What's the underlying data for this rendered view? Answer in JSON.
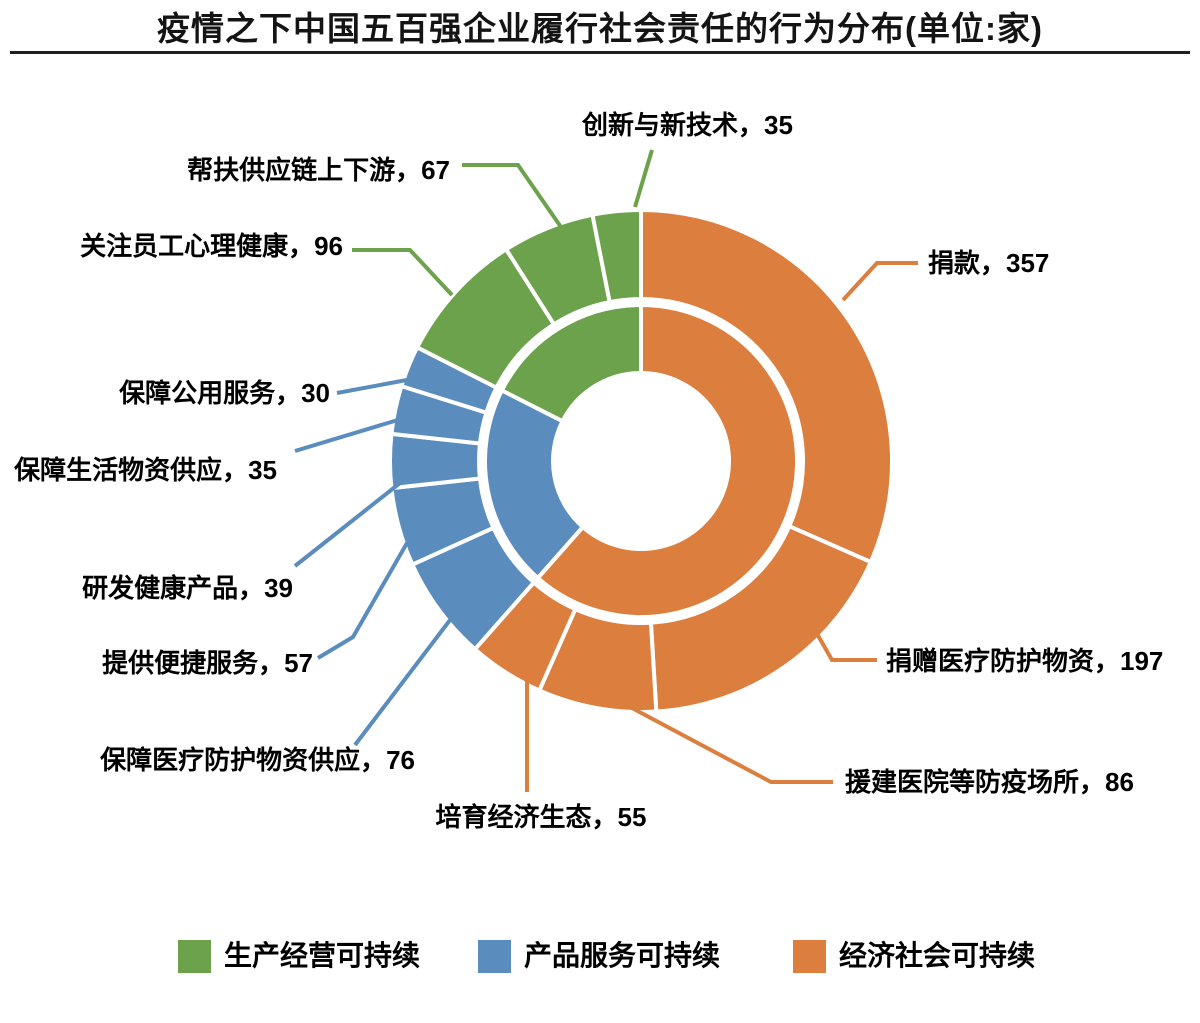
{
  "title": "疫情之下中国五百强企业履行社会责任的行为分布(单位:家)",
  "colors": {
    "green": "#6DA24C",
    "blue": "#5A8CBD",
    "orange": "#DC7E3D",
    "title_text": "#141414",
    "label_text": "#000000",
    "divider": "#1F1F1F",
    "gap_stroke": "#FFFFFF"
  },
  "legend": [
    {
      "label": "生产经营可持续",
      "color_key": "green"
    },
    {
      "label": "产品服务可持续",
      "color_key": "blue"
    },
    {
      "label": "经济社会可持续",
      "color_key": "orange"
    }
  ],
  "chart_data": {
    "type": "pie",
    "variant": "two-ring donut (sunburst)",
    "title": "疫情之下中国五百强企业履行社会责任的行为分布",
    "unit": "家",
    "total": 1130,
    "start_angle_deg": 0,
    "direction": "clockwise",
    "legend_position": "bottom",
    "rings": {
      "inner": [
        {
          "name": "经济社会可持续",
          "value": 695,
          "color_key": "orange"
        },
        {
          "name": "产品服务可持续",
          "value": 237,
          "color_key": "blue"
        },
        {
          "name": "生产经营可持续",
          "value": 198,
          "color_key": "green"
        }
      ],
      "outer": [
        {
          "name": "捐款",
          "value": 357,
          "category": "经济社会可持续",
          "color_key": "orange",
          "display": "捐款，357"
        },
        {
          "name": "捐赠医疗防护物资",
          "value": 197,
          "category": "经济社会可持续",
          "color_key": "orange",
          "display": "捐赠医疗防护物资，197"
        },
        {
          "name": "援建医院等防疫场所",
          "value": 86,
          "category": "经济社会可持续",
          "color_key": "orange",
          "display": "援建医院等防疫场所，86"
        },
        {
          "name": "培育经济生态",
          "value": 55,
          "category": "经济社会可持续",
          "color_key": "orange",
          "display": "培育经济生态，55"
        },
        {
          "name": "保障医疗防护物资供应",
          "value": 76,
          "category": "产品服务可持续",
          "color_key": "blue",
          "display": "保障医疗防护物资供应，76"
        },
        {
          "name": "提供便捷服务",
          "value": 57,
          "category": "产品服务可持续",
          "color_key": "blue",
          "display": "提供便捷服务，57"
        },
        {
          "name": "研发健康产品",
          "value": 39,
          "category": "产品服务可持续",
          "color_key": "blue",
          "display": "研发健康产品，39"
        },
        {
          "name": "保障生活物资供应",
          "value": 35,
          "category": "产品服务可持续",
          "color_key": "blue",
          "display": "保障生活物资供应，35"
        },
        {
          "name": "保障公用服务",
          "value": 30,
          "category": "产品服务可持续",
          "color_key": "blue",
          "display": "保障公用服务，30"
        },
        {
          "name": "关注员工心理健康",
          "value": 96,
          "category": "生产经营可持续",
          "color_key": "green",
          "display": "关注员工心理健康，96"
        },
        {
          "name": "帮扶供应链上下游",
          "value": 67,
          "category": "生产经营可持续",
          "color_key": "green",
          "display": "帮扶供应链上下游，67"
        },
        {
          "name": "创新与新技术",
          "value": 35,
          "category": "生产经营可持续",
          "color_key": "green",
          "display": "创新与新技术，35"
        }
      ]
    }
  }
}
